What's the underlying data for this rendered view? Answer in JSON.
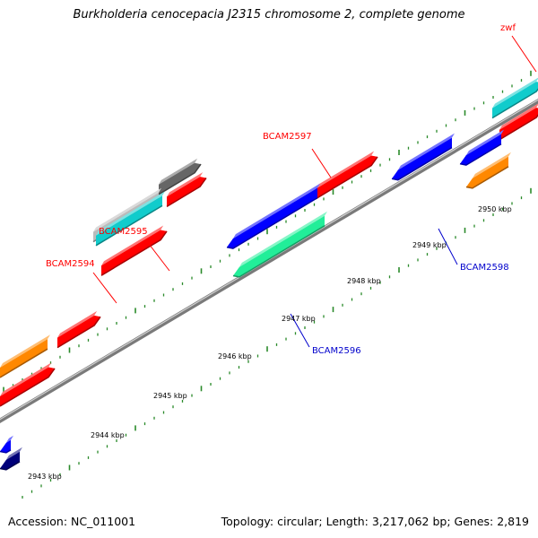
{
  "title": "Burkholderia cenocepacia J2315 chromosome 2, complete genome",
  "footer": {
    "accession": "Accession: NC_011001",
    "summary": "Topology: circular; Length: 3,217,062 bp; Genes: 2,819"
  },
  "colors": {
    "backbone": "#7a7a7a",
    "tick": "#2a8a2a",
    "forward_label": "#ff0000",
    "reverse_label": "#0000cc",
    "red": "#ff0000",
    "blue": "#0000ff",
    "navy": "#00007a",
    "cyan": "#11cccc",
    "orange": "#ff8800",
    "grey": "#666666",
    "light_grey": "#bbbbbb",
    "mint": "#22ee99"
  },
  "scale_labels": [
    {
      "text": "2943 kbp"
    },
    {
      "text": "2944 kbp"
    },
    {
      "text": "2945 kbp"
    },
    {
      "text": "2946 kbp"
    },
    {
      "text": "2947 kbp"
    },
    {
      "text": "2948 kbp"
    },
    {
      "text": "2949 kbp"
    },
    {
      "text": "2950 kbp"
    }
  ],
  "gene_labels": [
    {
      "text": "zwf",
      "strand": "forward"
    },
    {
      "text": "BCAM2597",
      "strand": "forward"
    },
    {
      "text": "BCAM2595",
      "strand": "forward"
    },
    {
      "text": "BCAM2594",
      "strand": "forward"
    },
    {
      "text": "BCAM2598",
      "strand": "reverse"
    },
    {
      "text": "BCAM2596",
      "strand": "reverse"
    }
  ],
  "features": [
    {
      "color": "cyan",
      "track": "forward-outer"
    },
    {
      "color": "red",
      "track": "forward-inner"
    },
    {
      "color": "red",
      "track": "forward-inner"
    },
    {
      "color": "grey",
      "track": "forward-outer"
    },
    {
      "color": "red",
      "track": "forward-inner"
    },
    {
      "color": "light_grey",
      "track": "forward-outer"
    },
    {
      "color": "cyan",
      "track": "forward-outer"
    },
    {
      "color": "red",
      "track": "forward-inner"
    },
    {
      "color": "red",
      "track": "forward-inner"
    },
    {
      "color": "orange",
      "track": "forward-outer"
    },
    {
      "color": "red",
      "track": "forward-inner"
    },
    {
      "color": "blue",
      "track": "reverse-inner"
    },
    {
      "color": "blue",
      "track": "reverse-inner"
    },
    {
      "color": "orange",
      "track": "reverse-outer"
    },
    {
      "color": "blue",
      "track": "reverse-inner"
    },
    {
      "color": "mint",
      "track": "reverse-outer"
    },
    {
      "color": "blue",
      "track": "reverse-inner"
    },
    {
      "color": "navy",
      "track": "reverse-outer"
    }
  ]
}
